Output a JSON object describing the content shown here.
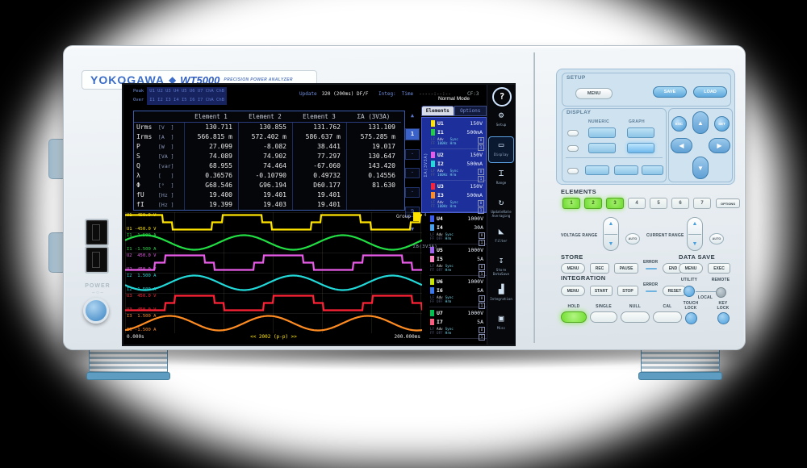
{
  "branding": {
    "maker": "YOKOGAWA",
    "diamond": "◆",
    "model": "WT5000",
    "tagline": "PRECISION POWER ANALYZER"
  },
  "left": {
    "power_label": "POWER",
    "power_symbols": "– ○ –"
  },
  "screen": {
    "header": {
      "peak_label": "Peak",
      "peak_value": "U1 U2 U3 U4 U5 U6 U7 ChA ChB",
      "over_label": "Over",
      "over_value": "I1 I2 I3 I4 I5 I6 I7 ChA ChB",
      "update_label": "Update",
      "update_value": "320 (200ms) DF/F",
      "integ_label": "Integ:",
      "time_label": "Time",
      "time_value": "-----:--:--",
      "cf": "CF:3",
      "help_icon": "?"
    },
    "mode": "Normal Mode",
    "tabs": [
      {
        "label": "Elements",
        "active": true
      },
      {
        "label": "Options",
        "active": false
      }
    ],
    "table": {
      "headers": [
        "Element 1",
        "Element 2",
        "Element 3",
        "ΣA (3V3A)"
      ],
      "rows": [
        {
          "name": "Urms",
          "unit": "[V  ]",
          "values": [
            "130.711",
            "130.855",
            "131.762",
            "131.109"
          ]
        },
        {
          "name": "Irms",
          "unit": "[A  ]",
          "values": [
            "566.815 m",
            "572.402 m",
            "586.637 m",
            "575.285 m"
          ]
        },
        {
          "name": "P",
          "unit": "[W  ]",
          "values": [
            "27.099",
            "-8.082",
            "38.441",
            "19.017"
          ]
        },
        {
          "name": "S",
          "unit": "[VA ]",
          "values": [
            "74.089",
            "74.902",
            "77.297",
            "130.647"
          ]
        },
        {
          "name": "Q",
          "unit": "[var]",
          "values": [
            "68.955",
            "74.464",
            "-67.060",
            "143.420"
          ]
        },
        {
          "name": "λ",
          "unit": "[   ]",
          "values": [
            "0.36576",
            "-0.10790",
            "0.49732",
            "0.14556"
          ]
        },
        {
          "name": "Φ",
          "unit": "[°  ]",
          "values": [
            "G68.546",
            "G96.194",
            "D60.177",
            "81.630"
          ]
        },
        {
          "name": "fU",
          "unit": "[Hz ]",
          "values": [
            "19.400",
            "19.401",
            "19.401",
            ""
          ]
        },
        {
          "name": "fI",
          "unit": "[Hz ]",
          "values": [
            "19.399",
            "19.403",
            "19.401",
            ""
          ]
        }
      ]
    },
    "scroll": {
      "up": "▲",
      "items": [
        "1",
        "·",
        "·",
        "·",
        "9"
      ],
      "active": "1",
      "down": "▼"
    },
    "waveform": {
      "group_label": "Group",
      "x_start": "0.000s",
      "x_center": "<< 2002 (p-p) >>",
      "x_end": "200.000ms",
      "traces": [
        {
          "id": "U1",
          "kind": "square",
          "color": "#ffe400",
          "phase": 0.02,
          "top_label": "U1  450.0 V",
          "bottom_label": "U1 -450.0 V"
        },
        {
          "id": "I1",
          "kind": "sine",
          "color": "#22dd44",
          "phase": 0.55,
          "top_label": "I1  1.500 A",
          "bottom_label": "I1 -1.500 A"
        },
        {
          "id": "U2",
          "kind": "square",
          "color": "#e85ae8",
          "phase": 0.6,
          "top_label": "U2  450.0 V",
          "bottom_label": "U2 -450.0 V"
        },
        {
          "id": "I2",
          "kind": "sine",
          "color": "#22d8d8",
          "phase": 0.05,
          "top_label": "I2  1.500 A",
          "bottom_label": "I2 -1.500 A"
        },
        {
          "id": "U3",
          "kind": "square",
          "color": "#ff2236",
          "phase": 0.5,
          "top_label": "U3  450.0 V",
          "bottom_label": "U3 -450.0 V"
        },
        {
          "id": "I3",
          "kind": "sine",
          "color": "#ff8c22",
          "phase": 0.3,
          "top_label": "I3  1.500 A",
          "bottom_label": "I3 -1.500 A"
        }
      ]
    },
    "sidebar": {
      "groups": [
        {
          "label": "ΣA(3V3A)",
          "highlight": true,
          "blocks": [
            0,
            1,
            2
          ]
        },
        {
          "label": "4",
          "highlight": false,
          "blocks": [
            3
          ]
        },
        {
          "label": "ΣB(3V3A)",
          "highlight": false,
          "blocks": [
            4,
            5,
            6
          ]
        }
      ],
      "blocks": [
        {
          "u_id": "U1",
          "u_range": "150V",
          "u_color": "#ffe400",
          "i_id": "I1",
          "i_range": "500mA",
          "i_color": "#22cc44",
          "lf": "LF",
          "ff": "FF",
          "adv": "Adv",
          "adv_value": "100Hz",
          "sync": "Sync",
          "sync_value": "Hrm",
          "tag_top": "U",
          "tag_bottom": "1"
        },
        {
          "u_id": "U2",
          "u_range": "150V",
          "u_color": "#e85ae8",
          "i_id": "I2",
          "i_range": "500mA",
          "i_color": "#22d8d8",
          "lf": "LF",
          "ff": "FF",
          "adv": "Adv",
          "adv_value": "100Hz",
          "sync": "Sync",
          "sync_value": "Hrm",
          "tag_top": "U",
          "tag_bottom": "1"
        },
        {
          "u_id": "U3",
          "u_range": "150V",
          "u_color": "#ff2236",
          "i_id": "I3",
          "i_range": "500mA",
          "i_color": "#ff8c22",
          "lf": "LF",
          "ff": "FF",
          "adv": "Adv",
          "adv_value": "100Hz",
          "sync": "Sync",
          "sync_value": "Hrm",
          "tag_top": "U",
          "tag_bottom": "1"
        },
        {
          "u_id": "U4",
          "u_range": "1000V",
          "u_color": "#3a5cf0",
          "i_id": "I4",
          "i_range": "30A",
          "i_color": "#48a4f0",
          "lf": "LF",
          "ff": "FF",
          "adv": "Adv",
          "adv_value": "OFF",
          "sync": "Sync",
          "sync_value": "Hrm",
          "tag_top": "U",
          "tag_bottom": "1"
        },
        {
          "u_id": "U5",
          "u_range": "1000V",
          "u_color": "#a060f0",
          "i_id": "I5",
          "i_range": "5A",
          "i_color": "#ff84c4",
          "lf": "LF",
          "ff": "FF",
          "adv": "Adv",
          "adv_value": "OFF",
          "sync": "Sync",
          "sync_value": "Hrm",
          "tag_top": "U",
          "tag_bottom": "1"
        },
        {
          "u_id": "U6",
          "u_range": "1000V",
          "u_color": "#c8e400",
          "i_id": "I6",
          "i_range": "5A",
          "i_color": "#3a78f0",
          "lf": "LF",
          "ff": "FF",
          "adv": "Adv",
          "adv_value": "OFF",
          "sync": "Sync",
          "sync_value": "Hrm",
          "tag_top": "U",
          "tag_bottom": "1"
        },
        {
          "u_id": "U7",
          "u_range": "1000V",
          "u_color": "#00c050",
          "i_id": "I7",
          "i_range": "5A",
          "i_color": "#ff5a80",
          "lf": "LF",
          "ff": "FF",
          "adv": "Adv",
          "adv_value": "OFF",
          "sync": "Sync",
          "sync_value": "Hrm",
          "tag_top": "U",
          "tag_bottom": "1"
        }
      ]
    },
    "icon_rail": [
      {
        "name": "setup-icon",
        "glyph": "⚙",
        "label": "Setup",
        "active": false
      },
      {
        "name": "display-icon",
        "glyph": "▭",
        "label": "Display",
        "active": true
      },
      {
        "name": "range-icon",
        "glyph": "⌶",
        "label": "Range",
        "active": false
      },
      {
        "name": "update-rate-icon",
        "glyph": "↻",
        "label": "UpdateRate Averaging",
        "active": false
      },
      {
        "name": "filter-icon",
        "glyph": "◣",
        "label": "Filter",
        "active": false
      },
      {
        "name": "store-icon",
        "glyph": "↧",
        "label": "Store DataSave",
        "active": false
      },
      {
        "name": "integration-icon",
        "glyph": "▟",
        "label": "Integration",
        "active": false
      },
      {
        "name": "misc-icon",
        "glyph": "▣",
        "label": "Misc",
        "active": false
      }
    ]
  },
  "panel": {
    "setup": {
      "label": "SETUP",
      "menu": "MENU",
      "save": "SAVE",
      "load": "LOAD"
    },
    "display": {
      "label": "DISPLAY",
      "numeric": "NUMERIC",
      "graph": "GRAPH",
      "row2": [
        "NUMERIC",
        "GRAPH",
        "CUSTOM"
      ]
    },
    "nav": {
      "esc": "ESC",
      "set": "SET",
      "up": "▲",
      "down": "▼",
      "left": "◀",
      "right": "▶"
    },
    "elements": {
      "label": "ELEMENTS",
      "buttons": [
        "1",
        "2",
        "3",
        "4",
        "5",
        "6",
        "7"
      ],
      "active": [
        "1",
        "2",
        "3"
      ],
      "options": "OPTIONS"
    },
    "ranges": {
      "voltage": "VOLTAGE RANGE",
      "current": "CURRENT RANGE",
      "auto": "AUTO",
      "up": "▲",
      "down": "▼"
    },
    "store": {
      "label": "STORE",
      "items": [
        {
          "t": "btn",
          "label": "MENU",
          "pill": true
        },
        {
          "t": "btn",
          "label": "REC"
        },
        {
          "t": "btn",
          "label": "PAUSE"
        },
        {
          "t": "ind",
          "label": "ERROR"
        },
        {
          "t": "btn",
          "label": "END",
          "pill": true
        }
      ]
    },
    "data_save": {
      "label": "DATA SAVE",
      "items": [
        {
          "t": "btn",
          "label": "MENU",
          "pill": true
        },
        {
          "t": "btn",
          "label": "EXEC"
        }
      ]
    },
    "integration": {
      "label": "INTEGRATION",
      "items": [
        {
          "t": "btn",
          "label": "MENU",
          "pill": true
        },
        {
          "t": "btn",
          "label": "START"
        },
        {
          "t": "btn",
          "label": "STOP"
        },
        {
          "t": "ind",
          "label": "ERROR"
        },
        {
          "t": "btn",
          "label": "RESET",
          "pill": true
        }
      ]
    },
    "utility": {
      "utility": "UTILITY",
      "remote": "REMOTE",
      "local": "LOCAL"
    },
    "bottom": {
      "buttons": [
        "HOLD",
        "SINGLE",
        "NULL",
        "CAL"
      ],
      "active": "HOLD",
      "touch_lock_1": "TOUCH",
      "touch_lock_2": "LOCK",
      "key_lock_1": "KEY",
      "key_lock_2": "LOCK"
    }
  }
}
